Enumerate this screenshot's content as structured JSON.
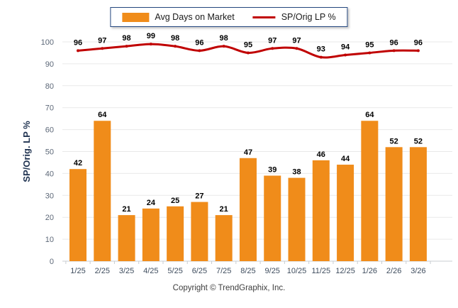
{
  "chart_data": {
    "type": "bar",
    "title": "",
    "categories": [
      "1/25",
      "2/25",
      "3/25",
      "4/25",
      "5/25",
      "6/25",
      "7/25",
      "8/25",
      "9/25",
      "10/25",
      "11/25",
      "12/25",
      "1/26",
      "2/26",
      "3/26"
    ],
    "series": [
      {
        "name": "Avg Days on Market",
        "type": "bar",
        "color": "#F08C1A",
        "values": [
          42,
          64,
          21,
          24,
          25,
          27,
          21,
          47,
          39,
          38,
          46,
          44,
          64,
          52,
          52
        ]
      },
      {
        "name": "SP/Orig LP %",
        "type": "line",
        "color": "#C00000",
        "values": [
          96,
          97,
          98,
          99,
          98,
          96,
          98,
          95,
          97,
          97,
          93,
          94,
          95,
          96,
          96
        ]
      }
    ],
    "xlabel": "",
    "ylabel": "SP/Orig. LP %",
    "ylim": [
      0,
      100
    ],
    "ytick_step": 10,
    "grid": true,
    "legend_position": "top-center",
    "gridline_color": "#e9e9e9",
    "axis_line_color": "#c8cdd2"
  },
  "footer": {
    "copyright": "Copyright © TrendGraphix, Inc."
  }
}
